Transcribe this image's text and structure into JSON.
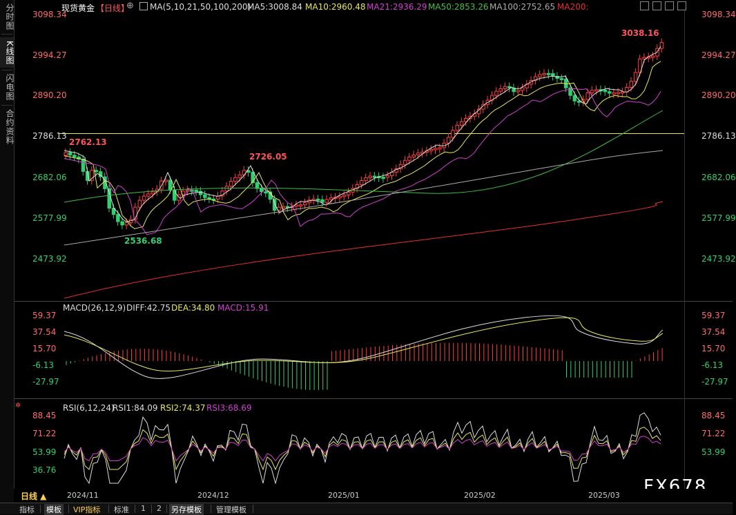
{
  "sidebar": {
    "items": [
      {
        "label": "分时图"
      },
      {
        "label": "K线图"
      },
      {
        "label": "闪电图"
      },
      {
        "label": "合约资料"
      }
    ]
  },
  "header": {
    "title": "现货黄金",
    "period_tag": "【日线】",
    "ma_prefix": "MA(5,10,21,50,100,200)",
    "ma": [
      {
        "label": "MA5:3008.84",
        "color": "#dddddd"
      },
      {
        "label": "MA10:2960.48",
        "color": "#e8e85a"
      },
      {
        "label": "MA21:2936.29",
        "color": "#d040d0"
      },
      {
        "label": "MA50:2853.26",
        "color": "#40c040"
      },
      {
        "label": "MA100:2752.65",
        "color": "#aaaaaa"
      },
      {
        "label": "MA200:",
        "color": "#e83030"
      }
    ]
  },
  "main_axis": {
    "right": [
      "3098.34",
      "2994.27",
      "2890.20",
      "2786.13",
      "2682.06",
      "2577.99",
      "2473.92"
    ],
    "left": [
      "3098.34",
      "2994.27",
      "2890.20",
      "2786.13",
      "2682.06",
      "2577.99",
      "2473.92"
    ]
  },
  "annotations": {
    "high": "3038.16",
    "start": "2762.13",
    "low": "2536.68",
    "mid_high": "2726.05"
  },
  "macd": {
    "title": "MACD(26,12,9)",
    "diff": "DIFF:42.75",
    "dea": "DEA:34.80",
    "macd": "MACD:15.91",
    "axis": [
      "59.37",
      "37.54",
      "15.70",
      "-6.13",
      "-27.97"
    ]
  },
  "rsi": {
    "title": "RSI(6,12,24)",
    "rsi1": "RSI1:84.09",
    "rsi2": "RSI2:74.37",
    "rsi3": "RSI3:68.69",
    "axis": [
      "88.45",
      "71.22",
      "53.99",
      "36.76"
    ]
  },
  "xaxis": [
    "2024/11",
    "2024/12",
    "2025/01",
    "2025/02",
    "2025/03"
  ],
  "period_button": "日线 ▲",
  "watermark": "FX678",
  "toolbar": {
    "items": [
      "指标",
      "模板",
      "VIP指标",
      "标准",
      "1",
      "2",
      "另存模板",
      "管理模板"
    ]
  },
  "colors": {
    "up": "#ff4040",
    "down": "#30d070",
    "support_line": "#e8e85a"
  }
}
